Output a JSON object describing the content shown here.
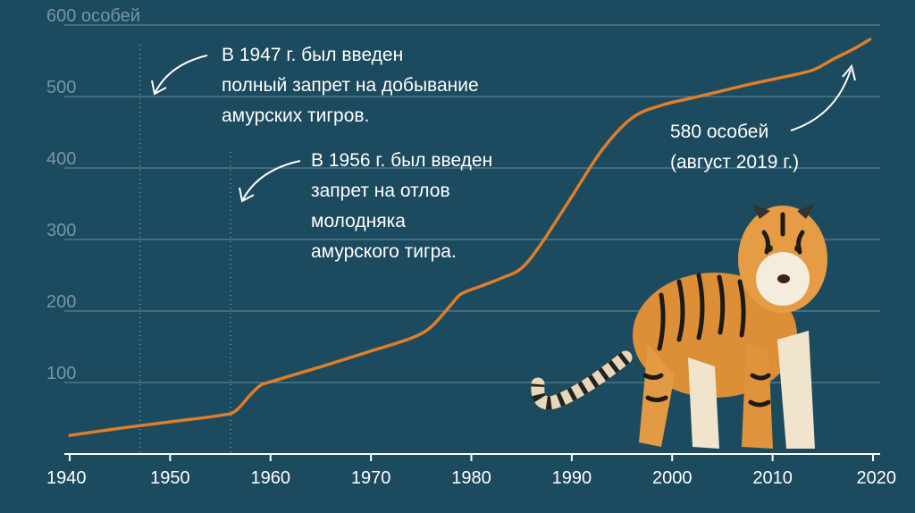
{
  "chart_data": {
    "type": "line",
    "title": "",
    "xlabel": "",
    "ylabel": "",
    "xlim": [
      1940,
      2020
    ],
    "ylim": [
      0,
      600
    ],
    "xticks": [
      "1940",
      "1950",
      "1960",
      "1970",
      "1980",
      "1990",
      "2000",
      "2010",
      "2020"
    ],
    "yticks": [
      "100",
      "200",
      "300",
      "400",
      "500",
      "600 особей"
    ],
    "grid": "horizontal",
    "colors": {
      "line": "#de7e28",
      "background": "#1c4a5e",
      "grid": "#6b8fa0"
    },
    "series": [
      {
        "name": "",
        "x": [
          1940,
          1945,
          1950,
          1955,
          1956.5,
          1958,
          1959,
          1960,
          1965,
          1970,
          1974,
          1976,
          1978,
          1979,
          1981,
          1983,
          1985,
          1987,
          1990,
          1993,
          1996,
          1999,
          2002,
          2005,
          2008,
          2011,
          2014,
          2016,
          2018,
          2019.7
        ],
        "y": [
          26,
          36,
          45,
          54,
          60,
          83,
          96,
          101,
          122,
          144,
          162,
          178,
          209,
          224,
          235,
          246,
          260,
          295,
          360,
          425,
          470,
          488,
          498,
          508,
          518,
          527,
          537,
          552,
          566,
          580
        ]
      }
    ],
    "annotations": [
      {
        "x": 1947,
        "lines": [
          "В 1947 г. был введен",
          "полный запрет на добывание",
          "амурских тигров."
        ]
      },
      {
        "x": 1956,
        "lines": [
          "В 1956 г. был введен",
          "запрет на отлов",
          "молодняка",
          "амурского тигра."
        ]
      },
      {
        "x": 2019.7,
        "y": 580,
        "lines": [
          "580 особей",
          "(август 2019 г.)"
        ]
      }
    ],
    "illustration": "tiger-illustration"
  }
}
